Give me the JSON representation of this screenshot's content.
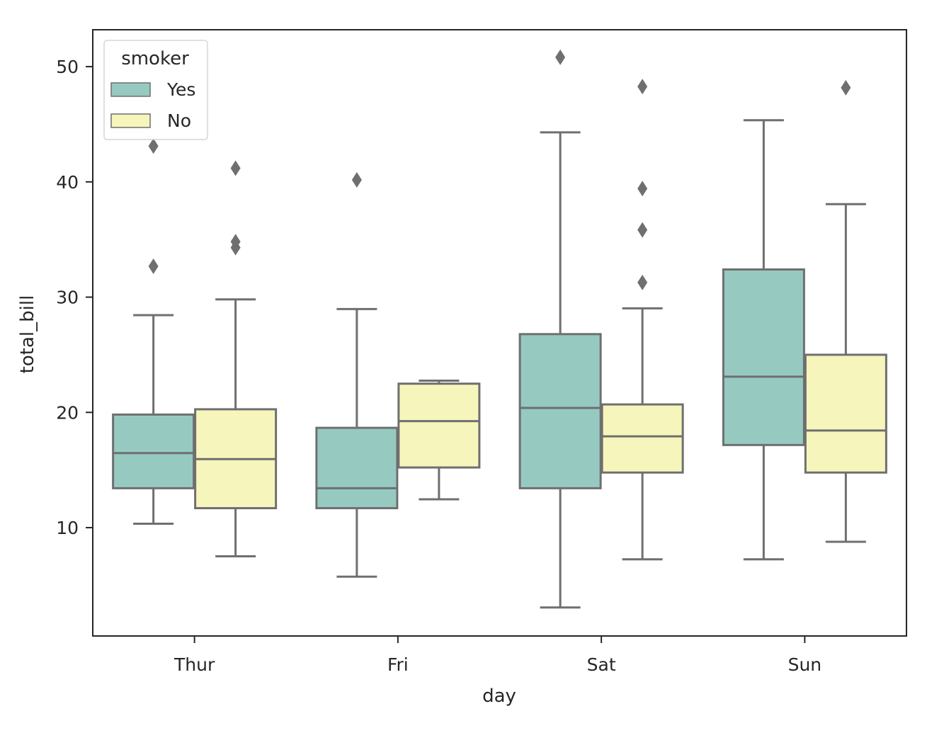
{
  "chart_data": {
    "type": "box",
    "title": "",
    "xlabel": "day",
    "ylabel": "total_bill",
    "categories": [
      "Thur",
      "Fri",
      "Sat",
      "Sun"
    ],
    "yticks": [
      10,
      20,
      30,
      40,
      50
    ],
    "ylim": [
      0.6,
      53.2
    ],
    "grid": false,
    "legend": {
      "title": "smoker",
      "position": "top-left",
      "entries": [
        "Yes",
        "No"
      ]
    },
    "colors": {
      "Yes": "#96cac1",
      "No": "#f6f6bc",
      "line": "#6f6f6f",
      "outlier": "#6f6f6f",
      "frame": "#262626"
    },
    "series": [
      {
        "name": "Yes",
        "boxes": [
          {
            "whislo": 10.34,
            "q1": 13.42,
            "med": 16.47,
            "q3": 19.81,
            "whishi": 28.44,
            "fliers": [
              32.68,
              43.11
            ]
          },
          {
            "whislo": 5.75,
            "q1": 11.69,
            "med": 13.42,
            "q3": 18.66,
            "whishi": 28.97,
            "fliers": [
              40.17
            ]
          },
          {
            "whislo": 3.07,
            "q1": 13.42,
            "med": 20.39,
            "q3": 26.79,
            "whishi": 44.3,
            "fliers": [
              50.81
            ]
          },
          {
            "whislo": 7.25,
            "q1": 17.17,
            "med": 23.1,
            "q3": 32.4,
            "whishi": 45.35,
            "fliers": []
          }
        ]
      },
      {
        "name": "No",
        "boxes": [
          {
            "whislo": 7.51,
            "q1": 11.69,
            "med": 15.95,
            "q3": 20.27,
            "whishi": 29.8,
            "fliers": [
              34.3,
              34.81,
              41.19
            ]
          },
          {
            "whislo": 12.46,
            "q1": 15.22,
            "med": 19.24,
            "q3": 22.49,
            "whishi": 22.75,
            "fliers": []
          },
          {
            "whislo": 7.25,
            "q1": 14.78,
            "med": 17.92,
            "q3": 20.69,
            "whishi": 29.03,
            "fliers": [
              31.27,
              35.83,
              39.42,
              48.27
            ]
          },
          {
            "whislo": 8.77,
            "q1": 14.78,
            "med": 18.43,
            "q3": 25.0,
            "whishi": 38.07,
            "fliers": [
              48.17
            ]
          }
        ]
      }
    ]
  }
}
